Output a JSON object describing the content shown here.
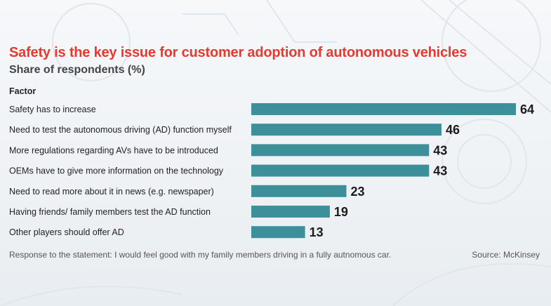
{
  "chart_data": {
    "type": "bar",
    "orientation": "horizontal",
    "title": "Safety is the key issue for customer adoption of autonomous vehicles",
    "subtitle": "Share of respondents (%)",
    "category_header": "Factor",
    "categories": [
      "Safety has to increase",
      "Need to test the autonomous driving (AD) function myself",
      "More regulations regarding AVs have to be introduced",
      "OEMs have to give more information on the technology",
      "Need to read more about it in news (e.g. newspaper)",
      "Having friends/ family members test the AD function",
      "Other players should offer AD"
    ],
    "values": [
      64,
      46,
      43,
      43,
      23,
      19,
      13
    ],
    "xlim": [
      0,
      64
    ],
    "grid": false,
    "bar_color": "#3d8f9a",
    "data_labels": true
  },
  "footnote": "Response to the statement: I would feel good with my family members driving in a fully autnomous car.",
  "source": "Source: McKinsey"
}
